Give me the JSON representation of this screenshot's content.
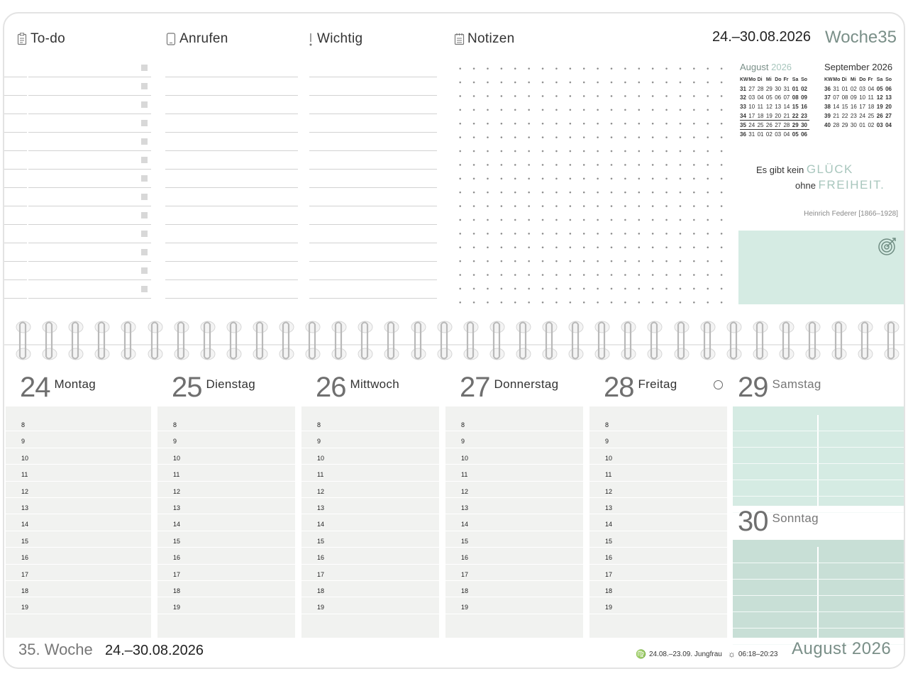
{
  "sections": {
    "todo": "To-do",
    "calls": "Anrufen",
    "important": "Wichtig",
    "notes": "Notizen"
  },
  "header": {
    "date_range": "24.–30.08.2026",
    "week_prefix": "Woche",
    "week_number": "35"
  },
  "mini_calendars": [
    {
      "title_month": "August",
      "title_year": "2026",
      "headers": [
        "KW",
        "Mo",
        "Di",
        "Mi",
        "Do",
        "Fr",
        "Sa",
        "So"
      ],
      "rows": [
        [
          "31",
          "27",
          "28",
          "29",
          "30",
          "31",
          "01",
          "02"
        ],
        [
          "32",
          "03",
          "04",
          "05",
          "06",
          "07",
          "08",
          "09"
        ],
        [
          "33",
          "10",
          "11",
          "12",
          "13",
          "14",
          "15",
          "16"
        ],
        [
          "34",
          "17",
          "18",
          "19",
          "20",
          "21",
          "22",
          "23"
        ],
        [
          "35",
          "24",
          "25",
          "26",
          "27",
          "28",
          "29",
          "30"
        ],
        [
          "36",
          "31",
          "01",
          "02",
          "03",
          "04",
          "05",
          "06"
        ]
      ],
      "current_row": 4
    },
    {
      "title_month": "September",
      "title_year": "2026",
      "headers": [
        "KW",
        "Mo",
        "Di",
        "Mi",
        "Do",
        "Fr",
        "Sa",
        "So"
      ],
      "rows": [
        [
          "36",
          "31",
          "01",
          "02",
          "03",
          "04",
          "05",
          "06"
        ],
        [
          "37",
          "07",
          "08",
          "09",
          "10",
          "11",
          "12",
          "13"
        ],
        [
          "38",
          "14",
          "15",
          "16",
          "17",
          "18",
          "19",
          "20"
        ],
        [
          "39",
          "21",
          "22",
          "23",
          "24",
          "25",
          "26",
          "27"
        ],
        [
          "40",
          "28",
          "29",
          "30",
          "01",
          "02",
          "03",
          "04"
        ]
      ],
      "current_row": -1
    }
  ],
  "quote": {
    "line1_prefix": "Es gibt kein",
    "line1_word": "GLÜCK",
    "line2_prefix": "ohne",
    "line2_word": "FREIHEIT.",
    "author": "Heinrich Federer [1866–1928]"
  },
  "days": [
    {
      "num": "24",
      "name": "Montag"
    },
    {
      "num": "25",
      "name": "Dienstag"
    },
    {
      "num": "26",
      "name": "Mittwoch"
    },
    {
      "num": "27",
      "name": "Donnerstag"
    },
    {
      "num": "28",
      "name": "Freitag"
    }
  ],
  "weekend": [
    {
      "num": "29",
      "name": "Samstag"
    },
    {
      "num": "30",
      "name": "Sonntag"
    }
  ],
  "hours": [
    "8",
    "9",
    "10",
    "11",
    "12",
    "13",
    "14",
    "15",
    "16",
    "17",
    "18",
    "19"
  ],
  "footer": {
    "week": "35. Woche",
    "dates": "24.–30.08.2026",
    "zodiac": "24.08.–23.09. Jungfrau",
    "sun": "06:18–20:23",
    "month": "August 2026"
  },
  "icons": [
    "clipboard-icon",
    "phone-icon",
    "exclamation-icon",
    "notepad-icon",
    "target-icon",
    "moon-icon",
    "virgo-icon",
    "sun-icon"
  ],
  "colors": {
    "accent_green": "#d5ebe3",
    "accent_green_dark": "#c8dfd6",
    "day_bg": "#f1f2f0",
    "heading_green": "#7a8f88"
  }
}
